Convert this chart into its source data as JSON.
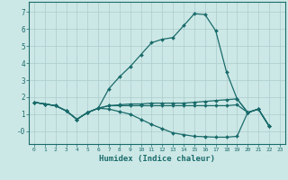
{
  "xlabel": "Humidex (Indice chaleur)",
  "background_color": "#cce8e6",
  "grid_color": "#aacccc",
  "line_color": "#1a6b6b",
  "xlim": [
    -0.5,
    23.5
  ],
  "ylim": [
    -0.75,
    7.6
  ],
  "xticks": [
    0,
    1,
    2,
    3,
    4,
    5,
    6,
    7,
    8,
    9,
    10,
    11,
    12,
    13,
    14,
    15,
    16,
    17,
    18,
    19,
    20,
    21,
    22,
    23
  ],
  "yticks": [
    0,
    1,
    2,
    3,
    4,
    5,
    6,
    7
  ],
  "ytick_labels": [
    "-0",
    "1",
    "2",
    "3",
    "4",
    "5",
    "6",
    "7"
  ],
  "series": [
    {
      "x": [
        0,
        1,
        2,
        3,
        4,
        5,
        6,
        7,
        8,
        9,
        10,
        11,
        12,
        13,
        14,
        15,
        16,
        17,
        18,
        19,
        20,
        21,
        22
      ],
      "y": [
        1.7,
        1.6,
        1.5,
        1.2,
        0.7,
        1.1,
        1.35,
        2.5,
        3.2,
        3.8,
        4.5,
        5.2,
        5.4,
        5.5,
        6.2,
        6.9,
        6.85,
        5.9,
        3.5,
        1.9,
        1.1,
        1.3,
        0.3
      ]
    },
    {
      "x": [
        0,
        1,
        2,
        3,
        4,
        5,
        6,
        7,
        8,
        9,
        10,
        11,
        12,
        13,
        14,
        15,
        16,
        17,
        18,
        19,
        20,
        21,
        22
      ],
      "y": [
        1.7,
        1.6,
        1.5,
        1.2,
        0.7,
        1.1,
        1.35,
        1.5,
        1.55,
        1.6,
        1.6,
        1.65,
        1.65,
        1.65,
        1.65,
        1.7,
        1.75,
        1.8,
        1.85,
        1.9,
        1.1,
        1.3,
        0.3
      ]
    },
    {
      "x": [
        0,
        1,
        2,
        3,
        4,
        5,
        6,
        7,
        8,
        9,
        10,
        11,
        12,
        13,
        14,
        15,
        16,
        17,
        18,
        19,
        20,
        21,
        22
      ],
      "y": [
        1.7,
        1.6,
        1.5,
        1.2,
        0.7,
        1.1,
        1.35,
        1.3,
        1.15,
        1.0,
        0.7,
        0.4,
        0.15,
        -0.1,
        -0.2,
        -0.3,
        -0.32,
        -0.35,
        -0.35,
        -0.3,
        1.1,
        1.3,
        0.3
      ]
    },
    {
      "x": [
        0,
        1,
        2,
        3,
        4,
        5,
        6,
        7,
        8,
        9,
        10,
        11,
        12,
        13,
        14,
        15,
        16,
        17,
        18,
        19,
        20,
        21,
        22
      ],
      "y": [
        1.7,
        1.6,
        1.5,
        1.2,
        0.7,
        1.1,
        1.35,
        1.5,
        1.5,
        1.5,
        1.5,
        1.5,
        1.5,
        1.5,
        1.5,
        1.5,
        1.5,
        1.5,
        1.5,
        1.55,
        1.1,
        1.3,
        0.3
      ]
    }
  ]
}
